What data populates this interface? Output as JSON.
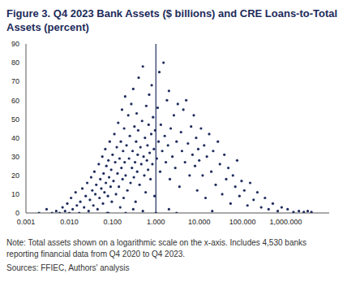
{
  "chart_data": {
    "type": "scatter",
    "title": "Figure 3. Q4 2023 Bank Assets ($ billions) and CRE Loans-to-Total Assets (percent)",
    "note": "Note: Total assets shown on a logarithmic scale on the x-axis. Includes 4,530 banks reporting financial data from Q4 2020 to Q4 2023.",
    "source": "Sources: FFIEC, Authors' analysis",
    "log": "x",
    "grid": false,
    "color": "#1f2d5e",
    "marker": "circle",
    "reference_x": 1,
    "xlim": [
      0.001,
      10000
    ],
    "xticks": [
      {
        "value": 0.001,
        "label": "0.001"
      },
      {
        "value": 0.01,
        "label": "0.010"
      },
      {
        "value": 0.1,
        "label": "0.100"
      },
      {
        "value": 1,
        "label": "1.000"
      },
      {
        "value": 10,
        "label": "10.000"
      },
      {
        "value": 100,
        "label": "100.000"
      },
      {
        "value": 1000,
        "label": "1,000.000"
      }
    ],
    "ylim": [
      0,
      90
    ],
    "yticks": [
      0,
      10,
      20,
      30,
      40,
      50,
      60,
      70,
      80,
      90
    ],
    "x": [
      0.002,
      0.003,
      0.004,
      0.005,
      0.006,
      0.007,
      0.008,
      0.009,
      0.01,
      0.011,
      0.012,
      0.014,
      0.015,
      0.017,
      0.018,
      0.02,
      0.022,
      0.024,
      0.026,
      0.028,
      0.03,
      0.032,
      0.034,
      0.036,
      0.038,
      0.04,
      0.042,
      0.045,
      0.048,
      0.05,
      0.052,
      0.055,
      0.058,
      0.06,
      0.062,
      0.065,
      0.068,
      0.07,
      0.072,
      0.075,
      0.078,
      0.08,
      0.083,
      0.086,
      0.09,
      0.093,
      0.096,
      0.1,
      0.105,
      0.11,
      0.115,
      0.12,
      0.125,
      0.13,
      0.135,
      0.14,
      0.145,
      0.15,
      0.155,
      0.16,
      0.165,
      0.17,
      0.175,
      0.18,
      0.185,
      0.19,
      0.195,
      0.2,
      0.21,
      0.22,
      0.23,
      0.24,
      0.25,
      0.26,
      0.27,
      0.28,
      0.29,
      0.3,
      0.31,
      0.32,
      0.33,
      0.34,
      0.35,
      0.36,
      0.37,
      0.38,
      0.39,
      0.4,
      0.42,
      0.44,
      0.46,
      0.48,
      0.5,
      0.52,
      0.54,
      0.56,
      0.58,
      0.6,
      0.62,
      0.64,
      0.66,
      0.68,
      0.7,
      0.72,
      0.75,
      0.78,
      0.8,
      0.83,
      0.86,
      0.9,
      0.93,
      0.96,
      1.05,
      1.1,
      1.15,
      1.2,
      1.25,
      1.3,
      1.4,
      1.5,
      1.6,
      1.7,
      1.8,
      1.9,
      2,
      2.1,
      2.2,
      2.4,
      2.6,
      2.8,
      3,
      3.2,
      3.5,
      3.8,
      4,
      4.3,
      4.7,
      5,
      5.5,
      6,
      6.5,
      7,
      7.5,
      8,
      8.5,
      9,
      9.5,
      10,
      11,
      12,
      13,
      14,
      15,
      17,
      19,
      21,
      24,
      27,
      30,
      34,
      38,
      42,
      47,
      53,
      60,
      68,
      75,
      85,
      95,
      110,
      130,
      150,
      180,
      220,
      270,
      330,
      400,
      500,
      650,
      800,
      1100,
      1500,
      2000,
      2600,
      3200,
      3900,
      0.2,
      0.5,
      1,
      3,
      0.08,
      20,
      0.3,
      2
    ],
    "values": [
      0,
      2,
      0,
      1,
      0,
      3,
      1,
      5,
      0,
      8,
      2,
      11,
      4,
      0,
      6,
      13,
      3,
      9,
      16,
      1,
      7,
      19,
      12,
      4,
      22,
      10,
      15,
      2,
      26,
      8,
      18,
      13,
      30,
      5,
      21,
      11,
      34,
      16,
      25,
      0,
      9,
      28,
      19,
      38,
      14,
      23,
      6,
      31,
      17,
      42,
      27,
      10,
      35,
      21,
      48,
      14,
      29,
      3,
      38,
      24,
      55,
      18,
      33,
      8,
      45,
      27,
      62,
      20,
      36,
      12,
      52,
      29,
      41,
      16,
      58,
      24,
      33,
      66,
      19,
      46,
      27,
      6,
      38,
      53,
      22,
      31,
      44,
      72,
      15,
      35,
      26,
      49,
      78,
      30,
      20,
      40,
      11,
      57,
      28,
      36,
      23,
      47,
      63,
      32,
      18,
      42,
      68,
      26,
      51,
      34,
      9,
      44,
      29,
      56,
      38,
      75,
      22,
      47,
      33,
      80,
      41,
      27,
      60,
      36,
      65,
      18,
      45,
      30,
      52,
      24,
      38,
      58,
      14,
      43,
      33,
      55,
      27,
      60,
      37,
      20,
      46,
      31,
      52,
      25,
      40,
      12,
      34,
      28,
      45,
      20,
      36,
      8,
      30,
      42,
      22,
      33,
      15,
      38,
      26,
      10,
      31,
      18,
      24,
      5,
      20,
      14,
      28,
      9,
      17,
      12,
      4,
      16,
      7,
      11,
      3,
      8,
      2,
      5,
      1,
      3,
      2,
      0.5,
      1,
      0.5,
      1,
      0.5,
      0,
      1,
      0,
      0,
      0,
      1,
      2,
      2
    ]
  }
}
